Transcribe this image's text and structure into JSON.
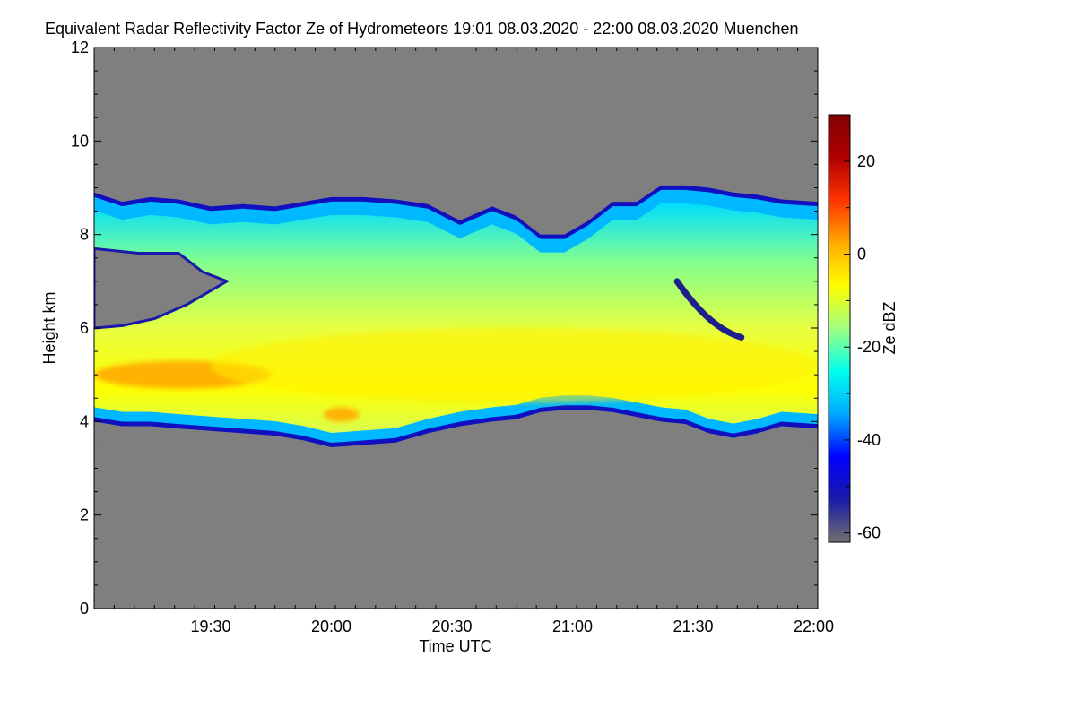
{
  "title": "Equivalent Radar Reflectivity Factor Ze of Hydrometeors   19:01 08.03.2020 - 22:00 08.03.2020 Muenchen",
  "chart_data": {
    "type": "heatmap",
    "xlabel": "Time UTC",
    "ylabel": "Height km",
    "colorbar_label": "Ze dBZ",
    "xlim_minutes_since_19": [
      1,
      181
    ],
    "ylim": [
      0,
      12
    ],
    "x_ticks": [
      {
        "label": "19:30",
        "minutes": 30
      },
      {
        "label": "20:00",
        "minutes": 60
      },
      {
        "label": "20:30",
        "minutes": 90
      },
      {
        "label": "21:00",
        "minutes": 120
      },
      {
        "label": "21:30",
        "minutes": 150
      },
      {
        "label": "22:00",
        "minutes": 180
      }
    ],
    "y_ticks": [
      0,
      2,
      4,
      6,
      8,
      10,
      12
    ],
    "colorbar_range": [
      -62,
      30
    ],
    "colorbar_ticks": [
      -60,
      -40,
      -20,
      0,
      20
    ],
    "colorbar_colors": [
      "#707070",
      "#1a1aa8",
      "#0000ff",
      "#00aaff",
      "#00ffee",
      "#a0ff80",
      "#ffff00",
      "#ffaa00",
      "#ff3300",
      "#b00000",
      "#800000"
    ],
    "background_color": "#7f7f7f",
    "cloud_layer": {
      "description": "main hydrometeor layer",
      "time_min": [
        1,
        181
      ],
      "top_height_km": [
        [
          1,
          8.9
        ],
        [
          8,
          8.7
        ],
        [
          15,
          8.8
        ],
        [
          22,
          8.75
        ],
        [
          30,
          8.6
        ],
        [
          38,
          8.65
        ],
        [
          46,
          8.6
        ],
        [
          53,
          8.7
        ],
        [
          60,
          8.8
        ],
        [
          68,
          8.8
        ],
        [
          76,
          8.75
        ],
        [
          84,
          8.65
        ],
        [
          92,
          8.3
        ],
        [
          100,
          8.6
        ],
        [
          106,
          8.4
        ],
        [
          112,
          8.0
        ],
        [
          118,
          8.0
        ],
        [
          124,
          8.3
        ],
        [
          130,
          8.7
        ],
        [
          136,
          8.7
        ],
        [
          142,
          9.05
        ],
        [
          148,
          9.05
        ],
        [
          154,
          9.0
        ],
        [
          160,
          8.9
        ],
        [
          166,
          8.85
        ],
        [
          172,
          8.75
        ],
        [
          181,
          8.7
        ]
      ],
      "base_height_km": [
        [
          1,
          4.0
        ],
        [
          8,
          3.9
        ],
        [
          15,
          3.9
        ],
        [
          22,
          3.85
        ],
        [
          30,
          3.8
        ],
        [
          38,
          3.75
        ],
        [
          46,
          3.7
        ],
        [
          53,
          3.6
        ],
        [
          60,
          3.45
        ],
        [
          68,
          3.5
        ],
        [
          76,
          3.55
        ],
        [
          84,
          3.75
        ],
        [
          92,
          3.9
        ],
        [
          100,
          4.0
        ],
        [
          106,
          4.05
        ],
        [
          112,
          4.2
        ],
        [
          118,
          4.25
        ],
        [
          124,
          4.25
        ],
        [
          130,
          4.2
        ],
        [
          136,
          4.1
        ],
        [
          142,
          4.0
        ],
        [
          148,
          3.95
        ],
        [
          154,
          3.75
        ],
        [
          160,
          3.65
        ],
        [
          166,
          3.75
        ],
        [
          172,
          3.9
        ],
        [
          181,
          3.85
        ]
      ]
    },
    "gap_region": {
      "description": "clear gap at left between lower layer and upper tail",
      "time_min": [
        1,
        34
      ],
      "top_height_km": [
        [
          1,
          7.7
        ],
        [
          12,
          7.6
        ],
        [
          22,
          7.6
        ],
        [
          28,
          7.2
        ],
        [
          34,
          7.0
        ]
      ],
      "bottom_height_km": [
        [
          1,
          6.0
        ],
        [
          8,
          6.05
        ],
        [
          16,
          6.2
        ],
        [
          24,
          6.5
        ],
        [
          30,
          6.8
        ],
        [
          34,
          7.0
        ]
      ]
    },
    "core_regions": [
      {
        "label": "orange core 19:01-19:45",
        "time_min": [
          1,
          45
        ],
        "height_km": [
          4.7,
          5.3
        ],
        "ze_dbz": 5
      },
      {
        "label": "orange core near 20:00",
        "time_min": [
          58,
          67
        ],
        "height_km": [
          4.0,
          4.3
        ],
        "ze_dbz": 4
      },
      {
        "label": "yellow band",
        "time_min": [
          30,
          181
        ],
        "height_km": [
          4.4,
          6.0
        ],
        "ze_dbz": -3
      }
    ],
    "weak_streak": {
      "label": "dark blue streak",
      "time_min": [
        146,
        162
      ],
      "height_km": [
        7.0,
        5.8
      ],
      "ze_dbz": -45
    }
  }
}
